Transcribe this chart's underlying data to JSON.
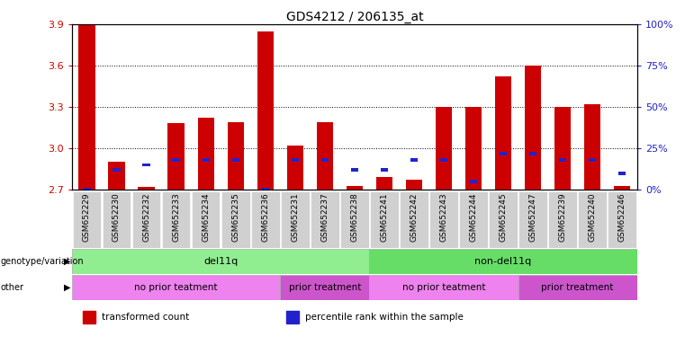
{
  "title": "GDS4212 / 206135_at",
  "samples": [
    "GSM652229",
    "GSM652230",
    "GSM652232",
    "GSM652233",
    "GSM652234",
    "GSM652235",
    "GSM652236",
    "GSM652231",
    "GSM652237",
    "GSM652238",
    "GSM652241",
    "GSM652242",
    "GSM652243",
    "GSM652244",
    "GSM652245",
    "GSM652247",
    "GSM652239",
    "GSM652240",
    "GSM652246"
  ],
  "red_values": [
    3.9,
    2.9,
    2.72,
    3.18,
    3.22,
    3.19,
    3.85,
    3.02,
    3.19,
    2.73,
    2.79,
    2.77,
    3.3,
    3.3,
    3.52,
    3.6,
    3.3,
    3.32,
    2.73
  ],
  "blue_pct": [
    0,
    12,
    15,
    18,
    18,
    18,
    0,
    18,
    18,
    12,
    12,
    18,
    18,
    5,
    22,
    22,
    18,
    18,
    10
  ],
  "ylim_left": [
    2.7,
    3.9
  ],
  "ylim_right": [
    0,
    100
  ],
  "yticks_left": [
    2.7,
    3.0,
    3.3,
    3.6,
    3.9
  ],
  "yticks_right": [
    0,
    25,
    50,
    75,
    100
  ],
  "bar_color_red": "#cc0000",
  "bar_color_blue": "#2222cc",
  "bar_width": 0.55,
  "genotype_groups": [
    {
      "label": "del11q",
      "start": 0,
      "end": 10,
      "color": "#90ee90"
    },
    {
      "label": "non-del11q",
      "start": 10,
      "end": 19,
      "color": "#66dd66"
    }
  ],
  "treatment_groups": [
    {
      "label": "no prior teatment",
      "start": 0,
      "end": 7,
      "color": "#ee82ee"
    },
    {
      "label": "prior treatment",
      "start": 7,
      "end": 10,
      "color": "#cc55cc"
    },
    {
      "label": "no prior teatment",
      "start": 10,
      "end": 15,
      "color": "#ee82ee"
    },
    {
      "label": "prior treatment",
      "start": 15,
      "end": 19,
      "color": "#cc55cc"
    }
  ],
  "legend_items": [
    {
      "label": "transformed count",
      "color": "#cc0000"
    },
    {
      "label": "percentile rank within the sample",
      "color": "#2222cc"
    }
  ],
  "left_axis_color": "#cc0000",
  "right_axis_color": "#2222cc",
  "grid_yticks": [
    3.0,
    3.3,
    3.6
  ],
  "tick_label_bg": "#d0d0d0"
}
